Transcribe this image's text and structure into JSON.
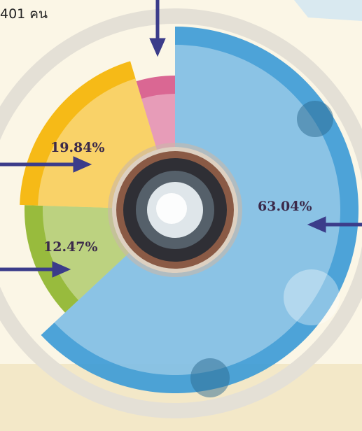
{
  "chart_data": {
    "type": "pie",
    "subtitle": "401 คน",
    "categories": [
      null,
      null,
      null,
      null
    ],
    "values": [
      63.04,
      12.47,
      19.84,
      4.65
    ],
    "value_labels": [
      "63.04%",
      "12.47%",
      "19.84%",
      null
    ],
    "colors": [
      "#3a9ad6",
      "#8db52a",
      "#f5b400",
      "#d6588a"
    ]
  }
}
